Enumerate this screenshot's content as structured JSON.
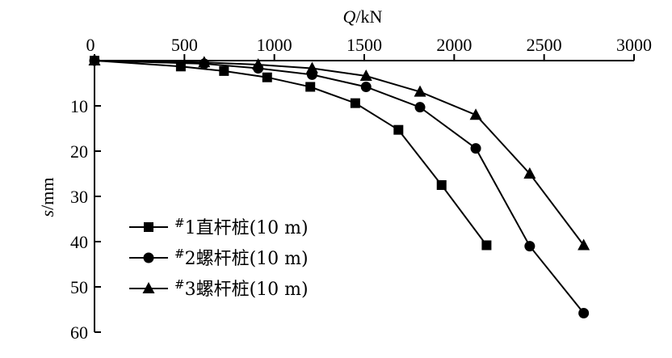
{
  "chart_data": {
    "type": "line",
    "xlabel_italic": "Q",
    "xlabel_unit": "/kN",
    "ylabel_italic": "s",
    "ylabel_unit": "/mm",
    "xlim": [
      0,
      3000
    ],
    "ylim": [
      0,
      60
    ],
    "y_inverted": true,
    "x_axis_position": "top",
    "x_ticks": [
      "0",
      "500",
      "1000",
      "1500",
      "2000",
      "2500",
      "3000"
    ],
    "y_ticks": [
      "10",
      "20",
      "30",
      "40",
      "50",
      "60"
    ],
    "grid": false,
    "legend_position": "bottom-left",
    "series": [
      {
        "name": "#1直杆桩(10 m)",
        "sup": "#",
        "label_main": "1直杆桩(10 m)",
        "marker": "square",
        "points": [
          [
            0,
            0
          ],
          [
            480,
            1.3
          ],
          [
            720,
            2.3
          ],
          [
            960,
            3.7
          ],
          [
            1200,
            5.8
          ],
          [
            1450,
            9.4
          ],
          [
            1690,
            15.3
          ],
          [
            1930,
            27.5
          ],
          [
            2180,
            40.8
          ]
        ]
      },
      {
        "name": "#2螺杆桩(10 m)",
        "sup": "#",
        "label_main": "2螺杆桩(10 m)",
        "marker": "circle",
        "points": [
          [
            0,
            0
          ],
          [
            610,
            0.7
          ],
          [
            910,
            1.7
          ],
          [
            1210,
            3.1
          ],
          [
            1510,
            5.8
          ],
          [
            1810,
            10.3
          ],
          [
            2120,
            19.4
          ],
          [
            2420,
            41
          ],
          [
            2720,
            55.8
          ]
        ]
      },
      {
        "name": "#3螺杆桩(10 m)",
        "sup": "#",
        "label_main": "3螺杆桩(10 m)",
        "marker": "triangle",
        "points": [
          [
            0,
            0
          ],
          [
            610,
            0.4
          ],
          [
            910,
            0.9
          ],
          [
            1210,
            1.7
          ],
          [
            1510,
            3.4
          ],
          [
            1810,
            6.9
          ],
          [
            2120,
            12
          ],
          [
            2420,
            25
          ],
          [
            2720,
            40.8
          ]
        ]
      }
    ]
  }
}
